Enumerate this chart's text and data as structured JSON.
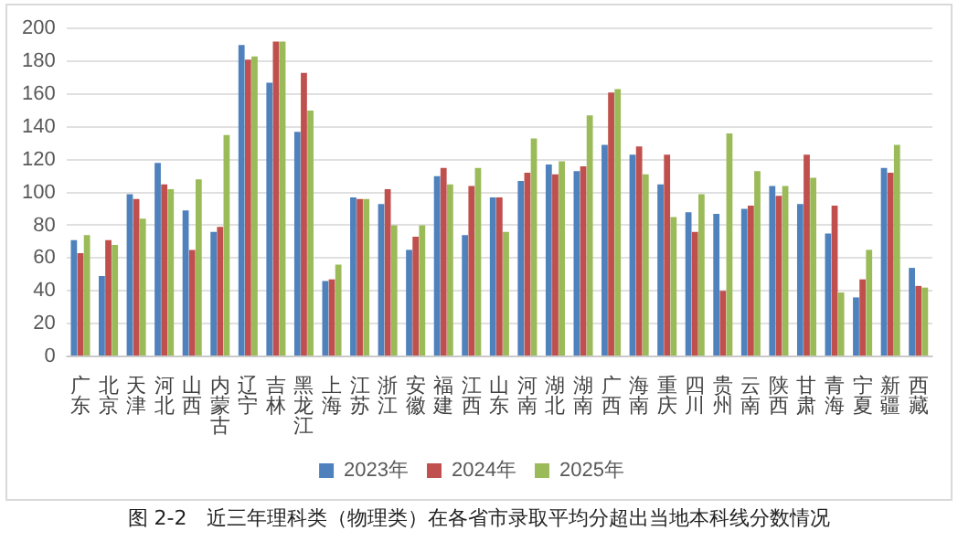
{
  "chart_data": {
    "type": "bar",
    "categories": [
      "广东",
      "北京",
      "天津",
      "河北",
      "山西",
      "内蒙古",
      "辽宁",
      "吉林",
      "黑龙江",
      "上海",
      "江苏",
      "浙江",
      "安徽",
      "福建",
      "江西",
      "山东",
      "河南",
      "湖北",
      "湖南",
      "广西",
      "海南",
      "重庆",
      "四川",
      "贵州",
      "云南",
      "陕西",
      "甘肃",
      "青海",
      "宁夏",
      "新疆",
      "西藏"
    ],
    "series": [
      {
        "name": "2023年",
        "color": "#4f81bd",
        "values": [
          71,
          49,
          99,
          118,
          89,
          76,
          190,
          167,
          137,
          46,
          97,
          93,
          65,
          110,
          74,
          97,
          107,
          117,
          113,
          129,
          123,
          105,
          88,
          87,
          90,
          104,
          93,
          75,
          36,
          115,
          54
        ]
      },
      {
        "name": "2024年",
        "color": "#c0504d",
        "values": [
          63,
          71,
          96,
          105,
          65,
          79,
          181,
          192,
          173,
          47,
          96,
          102,
          73,
          115,
          104,
          97,
          112,
          111,
          116,
          161,
          128,
          123,
          76,
          40,
          92,
          98,
          123,
          92,
          47,
          112,
          43
        ]
      },
      {
        "name": "2025年",
        "color": "#9bbb59",
        "values": [
          74,
          68,
          84,
          102,
          108,
          135,
          183,
          192,
          150,
          56,
          96,
          80,
          80,
          105,
          115,
          76,
          133,
          119,
          147,
          163,
          111,
          85,
          99,
          136,
          113,
          104,
          109,
          39,
          65,
          129,
          42
        ]
      }
    ],
    "ylim": [
      0,
      200
    ],
    "yticks": [
      0,
      20,
      40,
      60,
      80,
      100,
      120,
      140,
      160,
      180,
      200
    ],
    "grid": "y",
    "legend": "bottom",
    "annotations": [
      "图 2-2　近三年理科类（物理类）在各省市录取平均分超出当地本科线分数情况"
    ]
  }
}
